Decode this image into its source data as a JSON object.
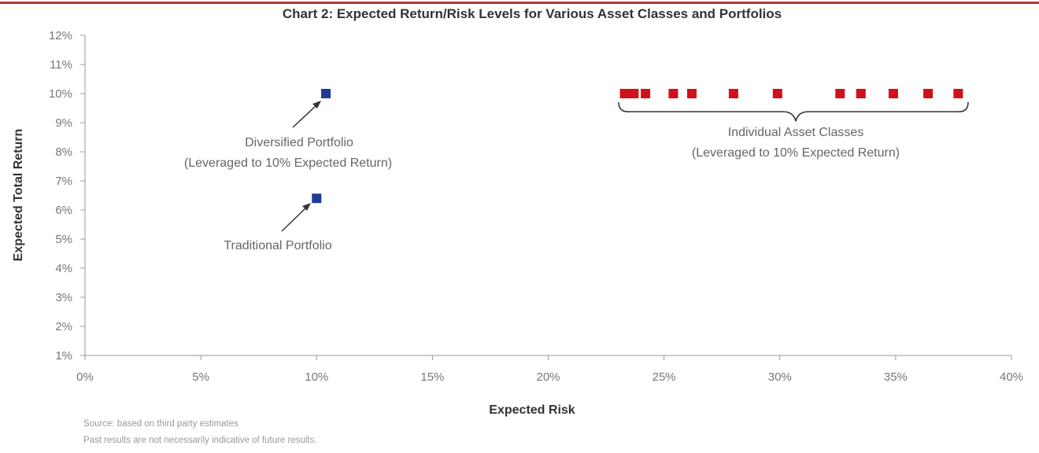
{
  "chart_data": {
    "type": "scatter",
    "title": "Chart 2: Expected Return/Risk Levels for Various Asset Classes and Portfolios",
    "xlabel": "Expected Risk",
    "ylabel": "Expected Total Return",
    "xlim": [
      0,
      40
    ],
    "ylim": [
      1,
      12
    ],
    "x_ticks": [
      "0%",
      "5%",
      "10%",
      "15%",
      "20%",
      "25%",
      "30%",
      "35%",
      "40%"
    ],
    "y_ticks": [
      "1%",
      "2%",
      "3%",
      "4%",
      "5%",
      "6%",
      "7%",
      "8%",
      "9%",
      "10%",
      "11%",
      "12%"
    ],
    "grid": false,
    "series": [
      {
        "color": "#1f3a93",
        "points": [
          {
            "x": 10.4,
            "y": 10.0
          },
          {
            "x": 10.0,
            "y": 6.4
          }
        ]
      },
      {
        "color": "#d0101a",
        "points": [
          {
            "x": 23.3,
            "y": 10
          },
          {
            "x": 23.7,
            "y": 10
          },
          {
            "x": 24.2,
            "y": 10
          },
          {
            "x": 25.4,
            "y": 10
          },
          {
            "x": 26.2,
            "y": 10
          },
          {
            "x": 28.0,
            "y": 10
          },
          {
            "x": 29.9,
            "y": 10
          },
          {
            "x": 32.6,
            "y": 10
          },
          {
            "x": 33.5,
            "y": 10
          },
          {
            "x": 34.9,
            "y": 10
          },
          {
            "x": 36.4,
            "y": 10
          },
          {
            "x": 37.7,
            "y": 10
          }
        ]
      }
    ],
    "annotations": {
      "diversified": [
        "Diversified Portfolio",
        "(Leveraged to 10% Expected Return)"
      ],
      "traditional": "Traditional Portfolio",
      "individual": [
        "Individual Asset Classes",
        "(Leveraged to 10% Expected Return)"
      ]
    }
  },
  "footer": {
    "source": "Source: based on third party estimates",
    "disclaimer": "Past results are not necessarily indicative of future results."
  },
  "accent": "#b8323c"
}
